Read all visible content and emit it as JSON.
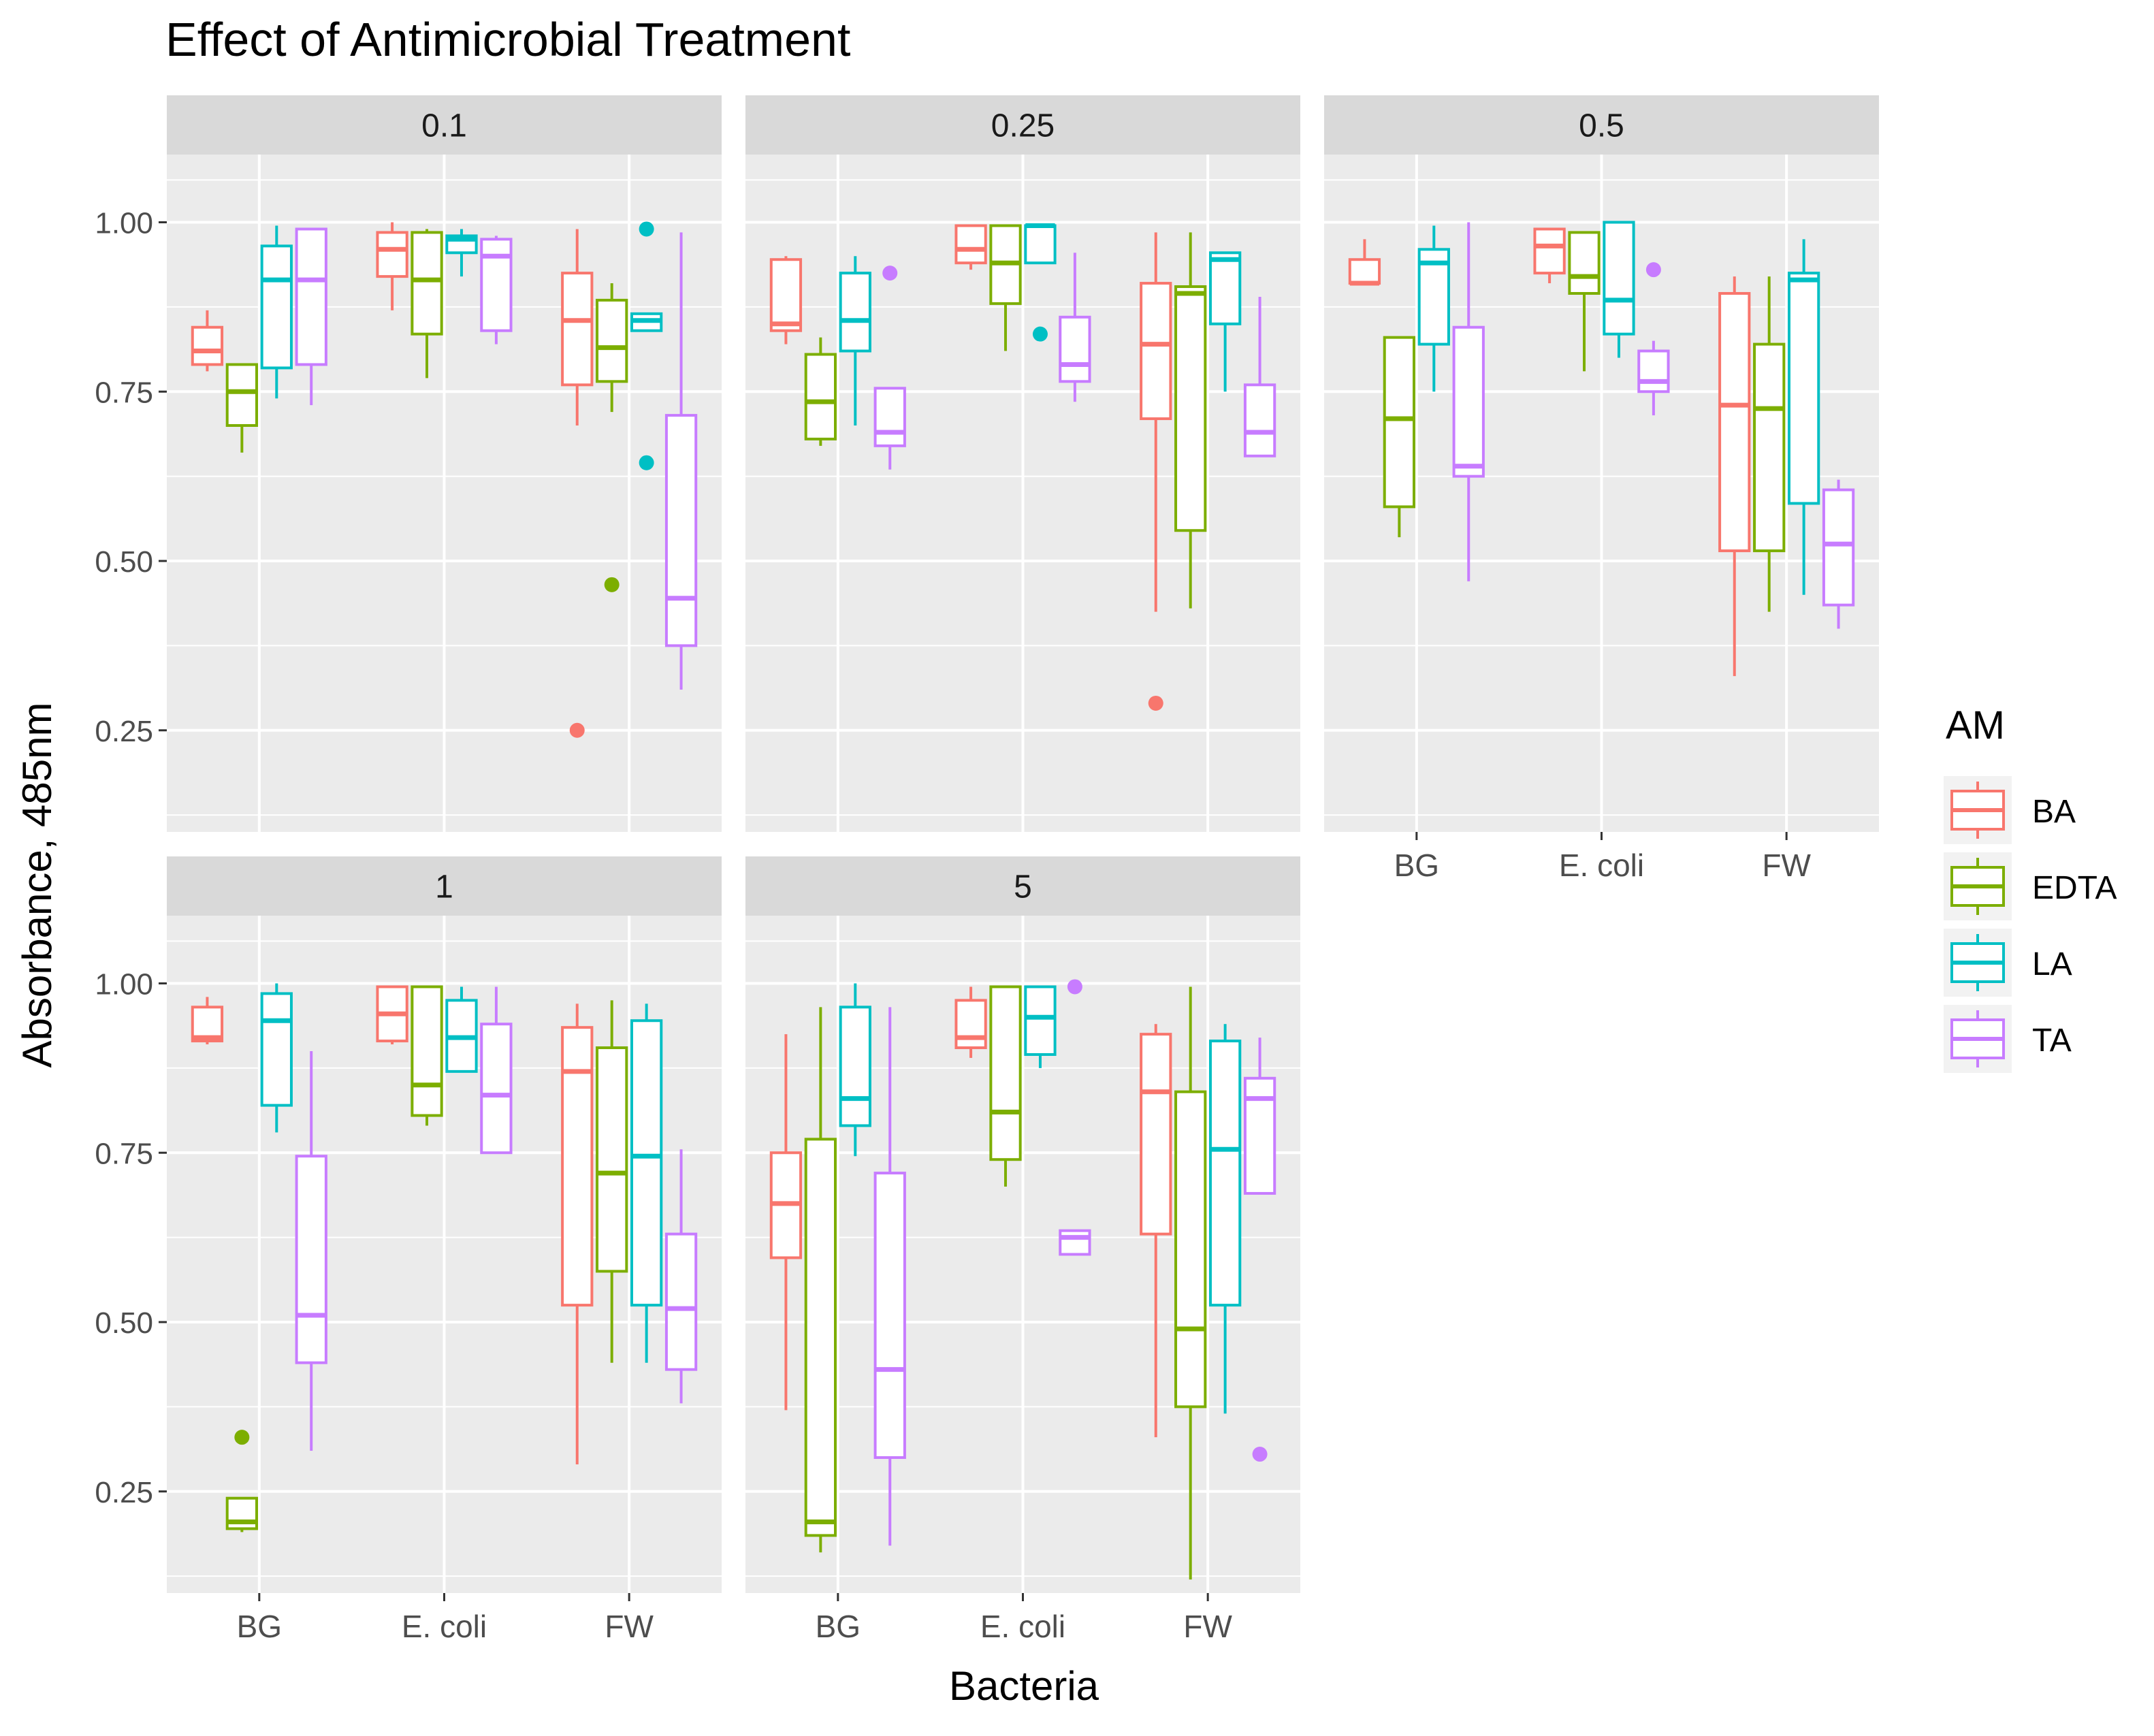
{
  "chart_data": {
    "type": "box",
    "title": "Effect of Antimicrobial Treatment",
    "xlabel": "Bacteria",
    "ylabel": "Absorbance, 485nm",
    "ylim": [
      0.1,
      1.1
    ],
    "y_ticks": [
      0.25,
      0.5,
      0.75,
      1.0
    ],
    "y_tick_labels": [
      "0.25",
      "0.50",
      "0.75",
      "1.00"
    ],
    "categories": [
      "BG",
      "E. coli",
      "FW"
    ],
    "grid": true,
    "legend": {
      "title": "AM",
      "position": "right",
      "entries": [
        {
          "label": "BA",
          "color": "#F8766D"
        },
        {
          "label": "EDTA",
          "color": "#7CAE00"
        },
        {
          "label": "LA",
          "color": "#00BFC4"
        },
        {
          "label": "TA",
          "color": "#C77CFF"
        }
      ]
    },
    "panels": [
      {
        "label": "0.1",
        "groups": {
          "BG": {
            "BA": {
              "min": 0.78,
              "q1": 0.79,
              "median": 0.81,
              "q3": 0.845,
              "max": 0.87,
              "outliers": []
            },
            "EDTA": {
              "min": 0.66,
              "q1": 0.7,
              "median": 0.75,
              "q3": 0.79,
              "max": 0.79,
              "outliers": []
            },
            "LA": {
              "min": 0.74,
              "q1": 0.785,
              "median": 0.915,
              "q3": 0.965,
              "max": 0.995,
              "outliers": []
            },
            "TA": {
              "min": 0.73,
              "q1": 0.79,
              "median": 0.915,
              "q3": 0.99,
              "max": 0.99,
              "outliers": []
            }
          },
          "E. coli": {
            "BA": {
              "min": 0.87,
              "q1": 0.92,
              "median": 0.96,
              "q3": 0.985,
              "max": 1.0,
              "outliers": []
            },
            "EDTA": {
              "min": 0.77,
              "q1": 0.835,
              "median": 0.915,
              "q3": 0.985,
              "max": 0.99,
              "outliers": []
            },
            "LA": {
              "min": 0.92,
              "q1": 0.955,
              "median": 0.975,
              "q3": 0.98,
              "max": 0.99,
              "outliers": []
            },
            "TA": {
              "min": 0.82,
              "q1": 0.84,
              "median": 0.95,
              "q3": 0.975,
              "max": 0.98,
              "outliers": []
            }
          },
          "FW": {
            "BA": {
              "min": 0.7,
              "q1": 0.76,
              "median": 0.855,
              "q3": 0.925,
              "max": 0.99,
              "outliers": [
                0.25
              ]
            },
            "EDTA": {
              "min": 0.72,
              "q1": 0.765,
              "median": 0.815,
              "q3": 0.885,
              "max": 0.91,
              "outliers": [
                0.465
              ]
            },
            "LA": {
              "min": 0.84,
              "q1": 0.84,
              "median": 0.855,
              "q3": 0.865,
              "max": 0.865,
              "outliers": [
                0.99,
                0.645
              ]
            },
            "TA": {
              "min": 0.31,
              "q1": 0.375,
              "median": 0.445,
              "q3": 0.715,
              "max": 0.985,
              "outliers": []
            }
          }
        }
      },
      {
        "label": "0.25",
        "groups": {
          "BG": {
            "BA": {
              "min": 0.82,
              "q1": 0.84,
              "median": 0.85,
              "q3": 0.945,
              "max": 0.95,
              "outliers": []
            },
            "EDTA": {
              "min": 0.67,
              "q1": 0.68,
              "median": 0.735,
              "q3": 0.805,
              "max": 0.83,
              "outliers": []
            },
            "LA": {
              "min": 0.7,
              "q1": 0.81,
              "median": 0.855,
              "q3": 0.925,
              "max": 0.95,
              "outliers": []
            },
            "TA": {
              "min": 0.635,
              "q1": 0.67,
              "median": 0.69,
              "q3": 0.755,
              "max": 0.755,
              "outliers": [
                0.925
              ]
            }
          },
          "E. coli": {
            "BA": {
              "min": 0.93,
              "q1": 0.94,
              "median": 0.96,
              "q3": 0.995,
              "max": 0.995,
              "outliers": []
            },
            "EDTA": {
              "min": 0.81,
              "q1": 0.88,
              "median": 0.94,
              "q3": 0.995,
              "max": 0.995,
              "outliers": []
            },
            "LA": {
              "min": 0.94,
              "q1": 0.94,
              "median": 0.995,
              "q3": 0.995,
              "max": 0.995,
              "outliers": [
                0.835
              ]
            },
            "TA": {
              "min": 0.735,
              "q1": 0.765,
              "median": 0.79,
              "q3": 0.86,
              "max": 0.955,
              "outliers": []
            }
          },
          "FW": {
            "BA": {
              "min": 0.425,
              "q1": 0.71,
              "median": 0.82,
              "q3": 0.91,
              "max": 0.985,
              "outliers": [
                0.29
              ]
            },
            "EDTA": {
              "min": 0.43,
              "q1": 0.545,
              "median": 0.895,
              "q3": 0.905,
              "max": 0.985,
              "outliers": []
            },
            "LA": {
              "min": 0.75,
              "q1": 0.85,
              "median": 0.945,
              "q3": 0.955,
              "max": 0.955,
              "outliers": []
            },
            "TA": {
              "min": 0.655,
              "q1": 0.655,
              "median": 0.69,
              "q3": 0.76,
              "max": 0.89,
              "outliers": []
            }
          }
        }
      },
      {
        "label": "0.5",
        "groups": {
          "BG": {
            "BA": {
              "min": 0.91,
              "q1": 0.91,
              "median": 0.91,
              "q3": 0.945,
              "max": 0.975,
              "outliers": []
            },
            "EDTA": {
              "min": 0.535,
              "q1": 0.58,
              "median": 0.71,
              "q3": 0.83,
              "max": 0.83,
              "outliers": []
            },
            "LA": {
              "min": 0.75,
              "q1": 0.82,
              "median": 0.94,
              "q3": 0.96,
              "max": 0.995,
              "outliers": []
            },
            "TA": {
              "min": 0.47,
              "q1": 0.625,
              "median": 0.64,
              "q3": 0.845,
              "max": 1.0,
              "outliers": []
            }
          },
          "E. coli": {
            "BA": {
              "min": 0.91,
              "q1": 0.925,
              "median": 0.965,
              "q3": 0.99,
              "max": 0.99,
              "outliers": []
            },
            "EDTA": {
              "min": 0.78,
              "q1": 0.895,
              "median": 0.92,
              "q3": 0.985,
              "max": 0.985,
              "outliers": []
            },
            "LA": {
              "min": 0.8,
              "q1": 0.835,
              "median": 0.885,
              "q3": 1.0,
              "max": 1.0,
              "outliers": []
            },
            "TA": {
              "min": 0.715,
              "q1": 0.75,
              "median": 0.765,
              "q3": 0.81,
              "max": 0.825,
              "outliers": [
                0.93
              ]
            }
          },
          "FW": {
            "BA": {
              "min": 0.33,
              "q1": 0.515,
              "median": 0.73,
              "q3": 0.895,
              "max": 0.92,
              "outliers": []
            },
            "EDTA": {
              "min": 0.425,
              "q1": 0.515,
              "median": 0.725,
              "q3": 0.82,
              "max": 0.92,
              "outliers": []
            },
            "LA": {
              "min": 0.45,
              "q1": 0.585,
              "median": 0.915,
              "q3": 0.925,
              "max": 0.975,
              "outliers": []
            },
            "TA": {
              "min": 0.4,
              "q1": 0.435,
              "median": 0.525,
              "q3": 0.605,
              "max": 0.62,
              "outliers": []
            }
          }
        }
      },
      {
        "label": "1",
        "groups": {
          "BG": {
            "BA": {
              "min": 0.91,
              "q1": 0.915,
              "median": 0.92,
              "q3": 0.965,
              "max": 0.98,
              "outliers": []
            },
            "EDTA": {
              "min": 0.19,
              "q1": 0.195,
              "median": 0.205,
              "q3": 0.24,
              "max": 0.24,
              "outliers": [
                0.33
              ]
            },
            "LA": {
              "min": 0.78,
              "q1": 0.82,
              "median": 0.945,
              "q3": 0.985,
              "max": 1.0,
              "outliers": []
            },
            "TA": {
              "min": 0.31,
              "q1": 0.44,
              "median": 0.51,
              "q3": 0.745,
              "max": 0.9,
              "outliers": []
            }
          },
          "E. coli": {
            "BA": {
              "min": 0.91,
              "q1": 0.915,
              "median": 0.955,
              "q3": 0.995,
              "max": 0.995,
              "outliers": []
            },
            "EDTA": {
              "min": 0.79,
              "q1": 0.805,
              "median": 0.85,
              "q3": 0.995,
              "max": 0.995,
              "outliers": []
            },
            "LA": {
              "min": 0.87,
              "q1": 0.87,
              "median": 0.92,
              "q3": 0.975,
              "max": 0.995,
              "outliers": []
            },
            "TA": {
              "min": 0.75,
              "q1": 0.75,
              "median": 0.835,
              "q3": 0.94,
              "max": 0.995,
              "outliers": []
            }
          },
          "FW": {
            "BA": {
              "min": 0.29,
              "q1": 0.525,
              "median": 0.87,
              "q3": 0.935,
              "max": 0.97,
              "outliers": []
            },
            "EDTA": {
              "min": 0.44,
              "q1": 0.575,
              "median": 0.72,
              "q3": 0.905,
              "max": 0.975,
              "outliers": []
            },
            "LA": {
              "min": 0.44,
              "q1": 0.525,
              "median": 0.745,
              "q3": 0.945,
              "max": 0.97,
              "outliers": []
            },
            "TA": {
              "min": 0.38,
              "q1": 0.43,
              "median": 0.52,
              "q3": 0.63,
              "max": 0.755,
              "outliers": []
            }
          }
        }
      },
      {
        "label": "5",
        "groups": {
          "BG": {
            "BA": {
              "min": 0.37,
              "q1": 0.595,
              "median": 0.675,
              "q3": 0.75,
              "max": 0.925,
              "outliers": []
            },
            "EDTA": {
              "min": 0.16,
              "q1": 0.185,
              "median": 0.205,
              "q3": 0.77,
              "max": 0.965,
              "outliers": []
            },
            "LA": {
              "min": 0.745,
              "q1": 0.79,
              "median": 0.83,
              "q3": 0.965,
              "max": 1.0,
              "outliers": []
            },
            "TA": {
              "min": 0.17,
              "q1": 0.3,
              "median": 0.43,
              "q3": 0.72,
              "max": 0.965,
              "outliers": []
            }
          },
          "E. coli": {
            "BA": {
              "min": 0.89,
              "q1": 0.905,
              "median": 0.92,
              "q3": 0.975,
              "max": 0.995,
              "outliers": []
            },
            "EDTA": {
              "min": 0.7,
              "q1": 0.74,
              "median": 0.81,
              "q3": 0.995,
              "max": 0.995,
              "outliers": []
            },
            "LA": {
              "min": 0.875,
              "q1": 0.895,
              "median": 0.95,
              "q3": 0.995,
              "max": 0.995,
              "outliers": []
            },
            "TA": {
              "min": 0.6,
              "q1": 0.6,
              "median": 0.625,
              "q3": 0.635,
              "max": 0.635,
              "outliers": [
                0.995
              ]
            }
          },
          "FW": {
            "BA": {
              "min": 0.33,
              "q1": 0.63,
              "median": 0.84,
              "q3": 0.925,
              "max": 0.94,
              "outliers": []
            },
            "EDTA": {
              "min": 0.12,
              "q1": 0.375,
              "median": 0.49,
              "q3": 0.84,
              "max": 0.995,
              "outliers": []
            },
            "LA": {
              "min": 0.365,
              "q1": 0.525,
              "median": 0.755,
              "q3": 0.915,
              "max": 0.94,
              "outliers": []
            },
            "TA": {
              "min": 0.69,
              "q1": 0.69,
              "median": 0.83,
              "q3": 0.86,
              "max": 0.92,
              "outliers": [
                0.305
              ]
            }
          }
        }
      }
    ]
  }
}
